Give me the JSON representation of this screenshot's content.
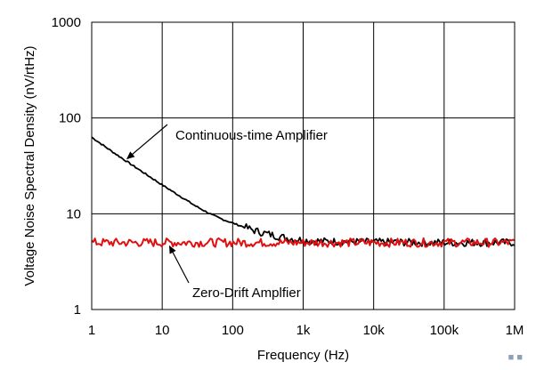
{
  "chart_data": {
    "type": "line",
    "title": "",
    "xlabel": "Frequency (Hz)",
    "ylabel": "Voltage Noise Spectral Density (nV/rtHz)",
    "xscale": "log",
    "yscale": "log",
    "xlim": [
      1,
      1000000
    ],
    "ylim": [
      1,
      1000
    ],
    "grid": true,
    "x_ticks": [
      {
        "value": 1,
        "label": "1"
      },
      {
        "value": 10,
        "label": "10"
      },
      {
        "value": 100,
        "label": "100"
      },
      {
        "value": 1000,
        "label": "1k"
      },
      {
        "value": 10000,
        "label": "10k"
      },
      {
        "value": 100000,
        "label": "100k"
      },
      {
        "value": 1000000,
        "label": "1M"
      }
    ],
    "y_ticks": [
      {
        "value": 1,
        "label": "1"
      },
      {
        "value": 10,
        "label": "10"
      },
      {
        "value": 100,
        "label": "100"
      },
      {
        "value": 1000,
        "label": "1000"
      }
    ],
    "series": [
      {
        "name": "Continuous-time Amplifier",
        "color": "#000000",
        "x": [
          1,
          2,
          3,
          5,
          10,
          20,
          30,
          50,
          70,
          100,
          150,
          200,
          300,
          500,
          700,
          1000,
          2000,
          5000,
          10000,
          20000,
          50000,
          100000,
          200000,
          500000,
          1000000
        ],
        "y": [
          63,
          44,
          36,
          28,
          20,
          14.5,
          12,
          9.8,
          8.8,
          8.0,
          7.2,
          6.7,
          6.2,
          5.7,
          5.5,
          5.3,
          5.15,
          5.1,
          5.05,
          5.05,
          5.0,
          5.0,
          5.0,
          5.0,
          5.0
        ],
        "noisy": true
      },
      {
        "name": "Zero-Drift Amplfier",
        "color": "#e01010",
        "x": [
          1,
          1000000
        ],
        "y": [
          5.0,
          5.0
        ],
        "noisy": true
      }
    ],
    "annotations": [
      {
        "text": "Continuous-time Amplifier",
        "series": 0,
        "arrow_to_x": 3
      },
      {
        "text": "Zero-Drift Amplfier",
        "series": 1,
        "arrow_to_x": 12
      }
    ]
  },
  "watermark": {
    "text": "■ ■"
  }
}
